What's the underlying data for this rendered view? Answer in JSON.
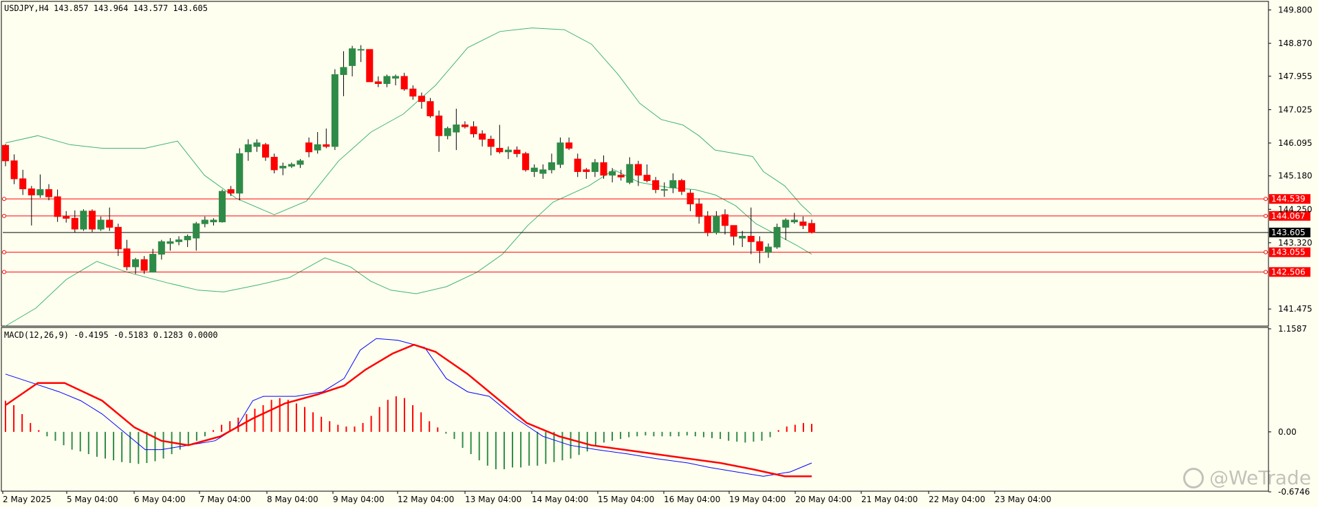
{
  "header": {
    "symbol": "USDJPY,H4",
    "ohlc": "143.857 143.964 143.577 143.605"
  },
  "macd": {
    "label": "MACD(12,26,9) -0.4195 -0.5183 0.1283 0.0000"
  },
  "watermark": "@WeTrade",
  "colors": {
    "background": "#fffff0",
    "bull": "#2e8b47",
    "bear": "#ff0000",
    "band": "#3cb371",
    "macd_line": "#0000ff",
    "signal_line": "#ff0000",
    "level_line": "#ff0000",
    "current_price": "#000000"
  },
  "chart_data": [
    {
      "type": "candlestick",
      "title": "USDJPY,H4",
      "ylim": [
        141.0,
        150.0
      ],
      "y_ticks": [
        "149.800",
        "148.870",
        "147.955",
        "147.025",
        "146.095",
        "145.180",
        "144.250",
        "143.320",
        "141.475"
      ],
      "x_ticks": [
        "2 May 2025",
        "5 May 04:00",
        "6 May 04:00",
        "7 May 04:00",
        "8 May 04:00",
        "9 May 04:00",
        "12 May 04:00",
        "13 May 04:00",
        "14 May 04:00",
        "15 May 04:00",
        "16 May 04:00",
        "19 May 04:00",
        "20 May 04:00",
        "21 May 04:00",
        "22 May 04:00",
        "23 May 04:00"
      ],
      "horizontal_levels": [
        {
          "label": "144.539",
          "value": 144.539
        },
        {
          "label": "144.067",
          "value": 144.067
        },
        {
          "label": "143.055",
          "value": 143.055
        },
        {
          "label": "142.506",
          "value": 142.506
        }
      ],
      "current_price": {
        "label": "143.605",
        "value": 143.605
      },
      "candles": [
        [
          146.03,
          146.07,
          145.45,
          145.6
        ],
        [
          145.6,
          145.78,
          144.95,
          145.1
        ],
        [
          145.1,
          145.35,
          144.65,
          144.82
        ],
        [
          144.82,
          144.9,
          143.8,
          144.65
        ],
        [
          144.65,
          145.22,
          144.57,
          144.8
        ],
        [
          144.8,
          144.95,
          144.5,
          144.6
        ],
        [
          144.6,
          144.8,
          143.9,
          144.05
        ],
        [
          144.05,
          144.2,
          143.88,
          144.0
        ],
        [
          144.0,
          144.22,
          143.6,
          143.7
        ],
        [
          143.7,
          144.25,
          143.65,
          144.2
        ],
        [
          144.2,
          144.25,
          143.62,
          143.7
        ],
        [
          143.7,
          144.05,
          143.65,
          143.95
        ],
        [
          143.95,
          144.3,
          143.65,
          143.75
        ],
        [
          143.75,
          143.85,
          142.95,
          143.15
        ],
        [
          143.15,
          143.4,
          142.55,
          142.65
        ],
        [
          142.65,
          142.9,
          142.45,
          142.85
        ],
        [
          142.85,
          142.95,
          142.45,
          142.55
        ],
        [
          142.5,
          143.15,
          142.5,
          143.0
        ],
        [
          143.0,
          143.4,
          142.85,
          143.35
        ],
        [
          143.3,
          143.45,
          143.1,
          143.35
        ],
        [
          143.35,
          143.5,
          143.25,
          143.4
        ],
        [
          143.4,
          143.55,
          143.2,
          143.5
        ],
        [
          143.45,
          143.9,
          143.1,
          143.85
        ],
        [
          143.85,
          144.05,
          143.75,
          143.95
        ],
        [
          143.9,
          144.0,
          143.8,
          143.95
        ],
        [
          143.9,
          144.8,
          143.88,
          144.75
        ],
        [
          144.8,
          144.9,
          144.62,
          144.7
        ],
        [
          144.7,
          145.95,
          144.5,
          145.8
        ],
        [
          145.85,
          146.2,
          145.6,
          146.05
        ],
        [
          146.0,
          146.2,
          145.85,
          146.1
        ],
        [
          146.05,
          146.1,
          145.6,
          145.7
        ],
        [
          145.7,
          145.8,
          145.25,
          145.35
        ],
        [
          145.4,
          145.55,
          145.2,
          145.45
        ],
        [
          145.45,
          145.55,
          145.4,
          145.5
        ],
        [
          145.5,
          145.65,
          145.4,
          145.6
        ],
        [
          146.1,
          146.25,
          145.7,
          145.85
        ],
        [
          145.9,
          146.4,
          145.8,
          146.05
        ],
        [
          146.05,
          146.5,
          145.95,
          146.0
        ],
        [
          146.0,
          148.15,
          145.9,
          148.0
        ],
        [
          148.0,
          148.65,
          147.4,
          148.2
        ],
        [
          148.25,
          148.8,
          147.95,
          148.72
        ],
        [
          148.7,
          148.82,
          148.35,
          148.7
        ],
        [
          148.7,
          148.7,
          147.8,
          147.8
        ],
        [
          147.8,
          147.95,
          147.65,
          147.75
        ],
        [
          147.75,
          148.0,
          147.65,
          147.95
        ],
        [
          147.9,
          148.0,
          147.7,
          147.95
        ],
        [
          147.95,
          148.05,
          147.55,
          147.6
        ],
        [
          147.6,
          147.7,
          147.3,
          147.4
        ],
        [
          147.4,
          147.5,
          147.05,
          147.25
        ],
        [
          147.25,
          147.35,
          146.8,
          146.85
        ],
        [
          146.85,
          147.0,
          145.85,
          146.3
        ],
        [
          146.3,
          146.55,
          146.2,
          146.5
        ],
        [
          146.4,
          147.05,
          145.9,
          146.6
        ],
        [
          146.6,
          146.7,
          146.5,
          146.55
        ],
        [
          146.55,
          146.7,
          146.25,
          146.35
        ],
        [
          146.35,
          146.45,
          146.0,
          146.2
        ],
        [
          146.2,
          146.3,
          145.75,
          146.0
        ],
        [
          145.95,
          146.6,
          145.8,
          145.85
        ],
        [
          145.85,
          146.0,
          145.65,
          145.9
        ],
        [
          145.9,
          146.0,
          145.7,
          145.8
        ],
        [
          145.8,
          145.85,
          145.3,
          145.35
        ],
        [
          145.3,
          145.5,
          145.15,
          145.4
        ],
        [
          145.25,
          145.5,
          145.1,
          145.35
        ],
        [
          145.35,
          145.8,
          145.25,
          145.55
        ],
        [
          145.5,
          146.25,
          145.4,
          146.1
        ],
        [
          146.1,
          146.25,
          145.9,
          145.95
        ],
        [
          145.65,
          145.8,
          145.15,
          145.3
        ],
        [
          145.35,
          145.4,
          145.1,
          145.3
        ],
        [
          145.3,
          145.65,
          145.15,
          145.55
        ],
        [
          145.55,
          145.75,
          145.1,
          145.2
        ],
        [
          145.2,
          145.4,
          145.0,
          145.3
        ],
        [
          145.2,
          145.35,
          145.05,
          145.15
        ],
        [
          145.0,
          145.7,
          144.95,
          145.5
        ],
        [
          145.5,
          145.6,
          144.9,
          145.2
        ],
        [
          145.2,
          145.5,
          145.0,
          145.05
        ],
        [
          145.05,
          145.15,
          144.7,
          144.8
        ],
        [
          144.8,
          145.0,
          144.6,
          144.8
        ],
        [
          144.85,
          145.25,
          144.7,
          145.05
        ],
        [
          145.05,
          145.1,
          144.65,
          144.75
        ],
        [
          144.7,
          144.8,
          144.2,
          144.4
        ],
        [
          144.4,
          144.55,
          143.85,
          144.05
        ],
        [
          144.05,
          144.2,
          143.5,
          143.6
        ],
        [
          143.6,
          144.2,
          143.55,
          144.05
        ],
        [
          144.1,
          144.25,
          143.55,
          143.8
        ],
        [
          143.8,
          143.8,
          143.25,
          143.5
        ],
        [
          143.45,
          143.65,
          143.2,
          143.5
        ],
        [
          143.5,
          144.3,
          143.0,
          143.35
        ],
        [
          143.35,
          143.5,
          142.75,
          143.1
        ],
        [
          143.05,
          143.3,
          142.9,
          143.2
        ],
        [
          143.2,
          143.85,
          143.15,
          143.75
        ],
        [
          143.75,
          144.0,
          143.4,
          143.95
        ],
        [
          143.9,
          144.15,
          143.85,
          143.95
        ],
        [
          143.9,
          144.05,
          143.7,
          143.8
        ],
        [
          143.857,
          143.964,
          143.577,
          143.605
        ]
      ],
      "bollinger_upper": [
        [
          0,
          146.1
        ],
        [
          12,
          146.3
        ],
        [
          24,
          146.05
        ],
        [
          36,
          145.95
        ],
        [
          52,
          145.95
        ],
        [
          64,
          146.15
        ],
        [
          74,
          145.2
        ],
        [
          86,
          144.55
        ],
        [
          100,
          144.1
        ],
        [
          112,
          144.48
        ],
        [
          124,
          145.6
        ],
        [
          136,
          146.4
        ],
        [
          148,
          146.9
        ],
        [
          160,
          147.7
        ],
        [
          172,
          148.75
        ],
        [
          184,
          149.2
        ],
        [
          196,
          149.3
        ],
        [
          208,
          149.25
        ],
        [
          218,
          148.85
        ],
        [
          228,
          148.0
        ],
        [
          236,
          147.2
        ],
        [
          244,
          146.75
        ],
        [
          252,
          146.6
        ],
        [
          258,
          146.3
        ],
        [
          264,
          145.9
        ],
        [
          278,
          145.72
        ],
        [
          282,
          145.3
        ],
        [
          290,
          144.9
        ],
        [
          296,
          144.38
        ],
        [
          300,
          144.1
        ]
      ],
      "bollinger_lower": [
        [
          0,
          141.0
        ],
        [
          12,
          141.5
        ],
        [
          24,
          142.3
        ],
        [
          36,
          142.8
        ],
        [
          48,
          142.5
        ],
        [
          64,
          142.2
        ],
        [
          76,
          142.0
        ],
        [
          86,
          141.95
        ],
        [
          100,
          142.15
        ],
        [
          112,
          142.35
        ],
        [
          126,
          142.9
        ],
        [
          136,
          142.65
        ],
        [
          144,
          142.25
        ],
        [
          152,
          142.0
        ],
        [
          162,
          141.9
        ],
        [
          174,
          142.1
        ],
        [
          186,
          142.5
        ],
        [
          196,
          143.0
        ],
        [
          206,
          143.8
        ],
        [
          216,
          144.45
        ],
        [
          230,
          144.9
        ],
        [
          240,
          145.35
        ],
        [
          250,
          145.0
        ],
        [
          262,
          144.85
        ],
        [
          272,
          144.8
        ],
        [
          280,
          144.65
        ],
        [
          288,
          144.35
        ],
        [
          296,
          143.85
        ],
        [
          304,
          143.55
        ],
        [
          312,
          143.25
        ],
        [
          318,
          143.0
        ]
      ]
    },
    {
      "type": "macd",
      "title": "MACD(12,26,9)",
      "ylim": [
        -0.6746,
        1.1587
      ],
      "y_ticks": [
        "1.1587",
        "0.00",
        "-0.6746"
      ],
      "values": {
        "macd": -0.4195,
        "signal": -0.5183,
        "histogram": 0.1283,
        "extra": 0.0
      },
      "histogram": [
        0.35,
        0.3,
        0.2,
        0.1,
        0.02,
        -0.05,
        -0.1,
        -0.15,
        -0.2,
        -0.22,
        -0.25,
        -0.28,
        -0.3,
        -0.32,
        -0.34,
        -0.35,
        -0.36,
        -0.35,
        -0.33,
        -0.3,
        -0.25,
        -0.2,
        -0.15,
        -0.1,
        -0.05,
        0.02,
        0.08,
        0.12,
        0.16,
        0.2,
        0.26,
        0.3,
        0.36,
        0.38,
        0.36,
        0.32,
        0.28,
        0.22,
        0.17,
        0.12,
        0.08,
        0.06,
        0.06,
        0.1,
        0.18,
        0.28,
        0.36,
        0.4,
        0.38,
        0.3,
        0.22,
        0.12,
        0.05,
        -0.02,
        -0.08,
        -0.18,
        -0.25,
        -0.32,
        -0.38,
        -0.42,
        -0.42,
        -0.4,
        -0.4,
        -0.38,
        -0.38,
        -0.36,
        -0.34,
        -0.32,
        -0.3,
        -0.26,
        -0.22,
        -0.16,
        -0.12,
        -0.1,
        -0.08,
        -0.06,
        -0.05,
        -0.04,
        -0.05,
        -0.05,
        -0.05,
        -0.05,
        -0.04,
        -0.05,
        -0.06,
        -0.07,
        -0.08,
        -0.1,
        -0.11,
        -0.12,
        -0.11,
        -0.1,
        -0.06,
        0.02,
        0.06,
        0.08,
        0.1,
        0.09
      ],
      "macd_line": [
        [
          0,
          0.65
        ],
        [
          10,
          0.55
        ],
        [
          20,
          0.45
        ],
        [
          28,
          0.35
        ],
        [
          36,
          0.2
        ],
        [
          44,
          0.0
        ],
        [
          52,
          -0.2
        ],
        [
          58,
          -0.2
        ],
        [
          68,
          -0.15
        ],
        [
          78,
          -0.1
        ],
        [
          86,
          0.05
        ],
        [
          92,
          0.35
        ],
        [
          96,
          0.4
        ],
        [
          108,
          0.4
        ],
        [
          118,
          0.45
        ],
        [
          126,
          0.6
        ],
        [
          132,
          0.92
        ],
        [
          138,
          1.05
        ],
        [
          146,
          1.03
        ],
        [
          156,
          0.95
        ],
        [
          164,
          0.6
        ],
        [
          172,
          0.45
        ],
        [
          180,
          0.4
        ],
        [
          190,
          0.15
        ],
        [
          200,
          -0.05
        ],
        [
          210,
          -0.15
        ],
        [
          220,
          -0.2
        ],
        [
          232,
          -0.25
        ],
        [
          242,
          -0.3
        ],
        [
          254,
          -0.35
        ],
        [
          262,
          -0.4
        ],
        [
          272,
          -0.45
        ],
        [
          282,
          -0.5
        ],
        [
          292,
          -0.45
        ],
        [
          300,
          -0.35
        ]
      ],
      "signal_line": [
        [
          0,
          0.3
        ],
        [
          12,
          0.55
        ],
        [
          22,
          0.55
        ],
        [
          36,
          0.35
        ],
        [
          48,
          0.05
        ],
        [
          58,
          -0.1
        ],
        [
          68,
          -0.15
        ],
        [
          80,
          -0.05
        ],
        [
          92,
          0.15
        ],
        [
          104,
          0.32
        ],
        [
          116,
          0.42
        ],
        [
          126,
          0.52
        ],
        [
          134,
          0.7
        ],
        [
          144,
          0.88
        ],
        [
          152,
          0.98
        ],
        [
          160,
          0.9
        ],
        [
          172,
          0.65
        ],
        [
          184,
          0.35
        ],
        [
          194,
          0.1
        ],
        [
          206,
          -0.05
        ],
        [
          218,
          -0.15
        ],
        [
          230,
          -0.2
        ],
        [
          242,
          -0.25
        ],
        [
          254,
          -0.3
        ],
        [
          266,
          -0.35
        ],
        [
          278,
          -0.42
        ],
        [
          290,
          -0.5
        ],
        [
          300,
          -0.5
        ]
      ]
    }
  ]
}
